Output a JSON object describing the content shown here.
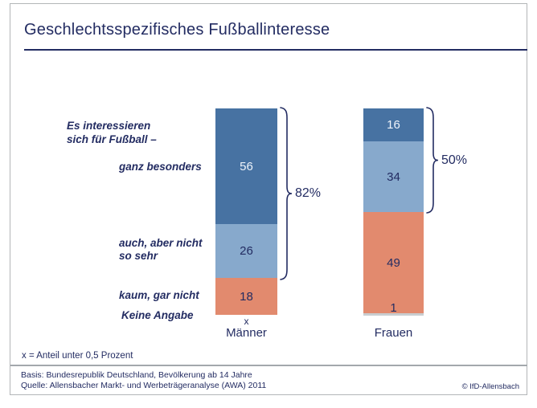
{
  "title": "Geschlechtsspezifisches Fußballinteresse",
  "colors": {
    "navy_text": "#232c62",
    "dark_blue": "#4772a2",
    "light_blue": "#87a9cc",
    "salmon": "#e28a6e",
    "gray_segment": "#c9cdd0",
    "panel_border": "#b3b6b8",
    "divider_gray": "#a3a8ac"
  },
  "labels": {
    "intro_line1": "Es interessieren",
    "intro_line2": "sich für Fußball –",
    "row_ganz": "ganz besonders",
    "row_auch_line1": "auch, aber nicht",
    "row_auch_line2": "so sehr",
    "row_kaum": "kaum, gar nicht",
    "row_keine": "Keine Angabe"
  },
  "chart_data": {
    "type": "bar",
    "stacked": true,
    "title": "Geschlechtsspezifisches Fußballinteresse",
    "unit": "%",
    "ylim": [
      0,
      100
    ],
    "categories": [
      "Männer",
      "Frauen"
    ],
    "series": [
      {
        "name": "ganz besonders",
        "color": "#4772a2",
        "values": [
          56,
          16
        ]
      },
      {
        "name": "auch, aber nicht so sehr",
        "color": "#87a9cc",
        "values": [
          26,
          34
        ]
      },
      {
        "name": "kaum, gar nicht",
        "color": "#e28a6e",
        "values": [
          18,
          49
        ]
      },
      {
        "name": "Keine Angabe",
        "color": "#c9cdd0",
        "values": [
          "x",
          1
        ]
      }
    ],
    "annotations": [
      {
        "category": "Männer",
        "label": "82%",
        "covers_series": [
          0,
          1
        ]
      },
      {
        "category": "Frauen",
        "label": "50%",
        "covers_series": [
          0,
          1
        ]
      }
    ],
    "footnote": "x = Anteil unter 0,5 Prozent"
  },
  "footer": {
    "basis": "Basis: Bundesrepublik Deutschland, Bevölkerung ab 14 Jahre",
    "quelle": "Quelle: Allensbacher Markt- und Werbeträgeranalyse (AWA) 2011",
    "copyright": "© IfD-Allensbach"
  }
}
